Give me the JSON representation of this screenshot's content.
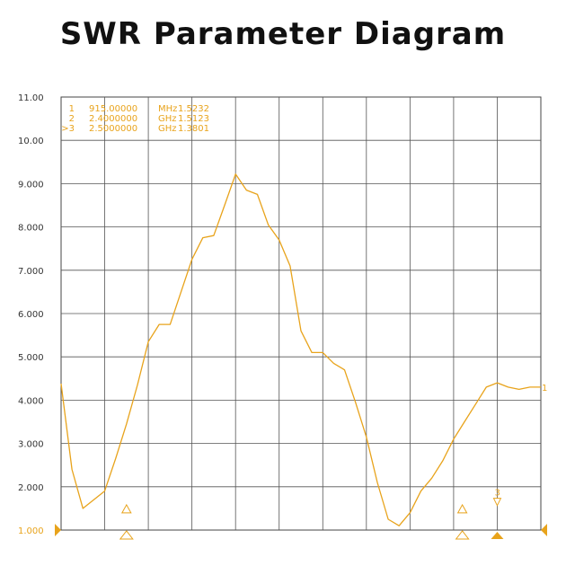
{
  "title": "SWR Parameter Diagram",
  "chart_data": {
    "type": "line",
    "title": "SWR Parameter Diagram",
    "xlabel": "",
    "ylabel": "",
    "ylim": [
      1.0,
      11.0
    ],
    "y_tick_labels": [
      "1.000",
      "2.000",
      "3.000",
      "4.000",
      "5.000",
      "6.000",
      "7.000",
      "8.000",
      "9.000",
      "10.00",
      "11.00"
    ],
    "grid": true,
    "color": "#e8a31b",
    "markers": [
      {
        "label": "1",
        "freq": "915.00000",
        "unit": "MHz",
        "swr": "1.5232"
      },
      {
        "label": "2",
        "freq": "2.4000000",
        "unit": "GHz",
        "swr": "1.5123"
      },
      {
        "label": ">3",
        "freq": "2.5000000",
        "unit": "GHz",
        "swr": "1.3801"
      }
    ],
    "trace_end_label": "1",
    "marker3_label": "3",
    "series": [
      {
        "x": [
          0,
          0.25,
          0.5,
          0.75,
          1,
          1.25,
          1.5,
          1.75,
          2,
          2.25,
          2.5,
          2.75,
          3,
          3.25,
          3.5,
          3.75,
          4,
          4.25,
          4.5,
          4.75,
          5,
          5.25,
          5.5,
          5.75,
          6,
          6.25,
          6.5,
          6.75,
          7,
          7.25,
          7.5,
          7.75,
          8,
          8.25,
          8.5,
          8.75,
          9,
          9.25,
          9.5,
          9.75,
          10,
          10.25,
          10.5,
          10.75,
          11
        ],
        "y": [
          4.38,
          2.4,
          1.5,
          1.7,
          1.9,
          2.65,
          3.45,
          4.35,
          5.35,
          5.75,
          5.75,
          6.5,
          7.25,
          7.75,
          7.8,
          8.5,
          9.22,
          8.85,
          8.75,
          8.05,
          7.7,
          7.1,
          5.6,
          5.1,
          5.1,
          4.85,
          4.7,
          3.95,
          3.15,
          2.1,
          1.25,
          1.1,
          1.4,
          1.9,
          2.2,
          2.6,
          3.1,
          3.5,
          3.9,
          4.3,
          4.4,
          4.3,
          4.25,
          4.3,
          4.3
        ]
      }
    ]
  }
}
